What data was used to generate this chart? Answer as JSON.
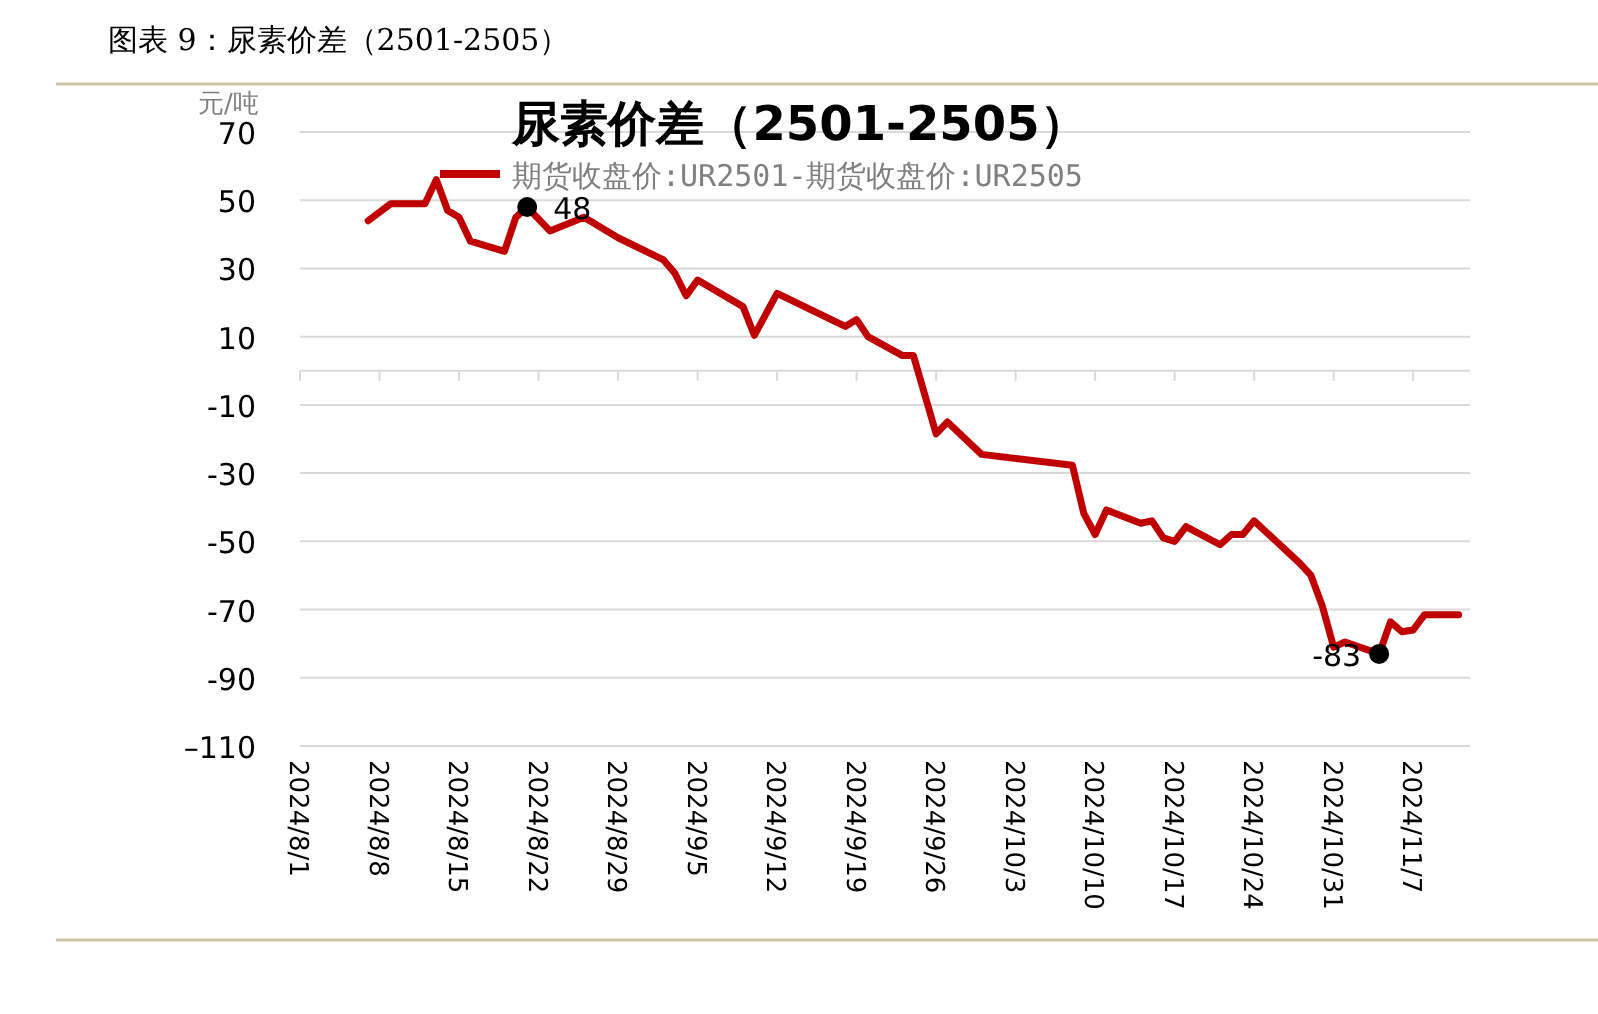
{
  "chart_data": {
    "type": "line",
    "title": "尿素价差（2501-2505）",
    "ylabel": "元/吨",
    "annotations": [
      "图表 9：尿素价差（2501-2505）",
      {
        "text": "48",
        "x": "2024-08-21",
        "y": 48
      },
      {
        "text": "-83",
        "x": "2024-11-04",
        "y": -83
      }
    ],
    "x": [
      "2024-08-07",
      "2024-08-09",
      "2024-08-12",
      "2024-08-13",
      "2024-08-14",
      "2024-08-15",
      "2024-08-16",
      "2024-08-19",
      "2024-08-20",
      "2024-08-21",
      "2024-08-23",
      "2024-08-26",
      "2024-08-29",
      "2024-09-02",
      "2024-09-03",
      "2024-09-04",
      "2024-09-05",
      "2024-09-09",
      "2024-09-10",
      "2024-09-12",
      "2024-09-18",
      "2024-09-19",
      "2024-09-20",
      "2024-09-23",
      "2024-09-24",
      "2024-09-26",
      "2024-09-27",
      "2024-09-30",
      "2024-10-08",
      "2024-10-09",
      "2024-10-10",
      "2024-10-11",
      "2024-10-14",
      "2024-10-15",
      "2024-10-16",
      "2024-10-17",
      "2024-10-18",
      "2024-10-21",
      "2024-10-22",
      "2024-10-23",
      "2024-10-24",
      "2024-10-28",
      "2024-10-29",
      "2024-10-30",
      "2024-10-31",
      "2024-11-01",
      "2024-11-04",
      "2024-11-05",
      "2024-11-06",
      "2024-11-07",
      "2024-11-08",
      "2024-11-11"
    ],
    "series": [
      {
        "name": "期货收盘价:UR2501-期货收盘价:UR2505",
        "color": "#c00000",
        "values": [
          44,
          49,
          49,
          56,
          47,
          45,
          38,
          35,
          45,
          48,
          41,
          45,
          39,
          32.5,
          28.6,
          22,
          26.6,
          18.8,
          10.4,
          22.7,
          13,
          15,
          10,
          4.5,
          4.5,
          -18.5,
          -15,
          -24.5,
          -27.7,
          -41.8,
          -48,
          -40.8,
          -44.7,
          -44,
          -49,
          -50,
          -45.7,
          -51,
          -48,
          -48,
          -44,
          -56.4,
          -60,
          -69,
          -81,
          -79.5,
          -83,
          -73.6,
          -76.5,
          -76,
          -71.5,
          -71.5
        ]
      }
    ],
    "xlim": [
      "2024-08-01",
      "2024-11-12"
    ],
    "xticks": [
      {
        "value": "2024-08-01",
        "label": "2024/8/1"
      },
      {
        "value": "2024-08-08",
        "label": "2024/8/8"
      },
      {
        "value": "2024-08-15",
        "label": "2024/8/15"
      },
      {
        "value": "2024-08-22",
        "label": "2024/8/22"
      },
      {
        "value": "2024-08-29",
        "label": "2024/8/29"
      },
      {
        "value": "2024-09-05",
        "label": "2024/9/5"
      },
      {
        "value": "2024-09-12",
        "label": "2024/9/12"
      },
      {
        "value": "2024-09-19",
        "label": "2024/9/19"
      },
      {
        "value": "2024-09-26",
        "label": "2024/9/26"
      },
      {
        "value": "2024-10-03",
        "label": "2024/10/3"
      },
      {
        "value": "2024-10-10",
        "label": "2024/10/10"
      },
      {
        "value": "2024-10-17",
        "label": "2024/10/17"
      },
      {
        "value": "2024-10-24",
        "label": "2024/10/24"
      },
      {
        "value": "2024-10-31",
        "label": "2024/10/31"
      },
      {
        "value": "2024-11-07",
        "label": "2024/11/7"
      }
    ],
    "ylim": [
      -110,
      70
    ],
    "yticks": [
      {
        "value": 70,
        "label": "70"
      },
      {
        "value": 50,
        "label": "50"
      },
      {
        "value": 30,
        "label": "30"
      },
      {
        "value": 10,
        "label": "10"
      },
      {
        "value": -10,
        "label": "-10"
      },
      {
        "value": -30,
        "label": "-30"
      },
      {
        "value": -50,
        "label": "-50"
      },
      {
        "value": -70,
        "label": "-70"
      },
      {
        "value": -90,
        "label": "-90"
      },
      {
        "value": -110,
        "label": "–110"
      }
    ],
    "grid": "y",
    "legend": "top",
    "marker": "none",
    "line_style": "solid"
  }
}
